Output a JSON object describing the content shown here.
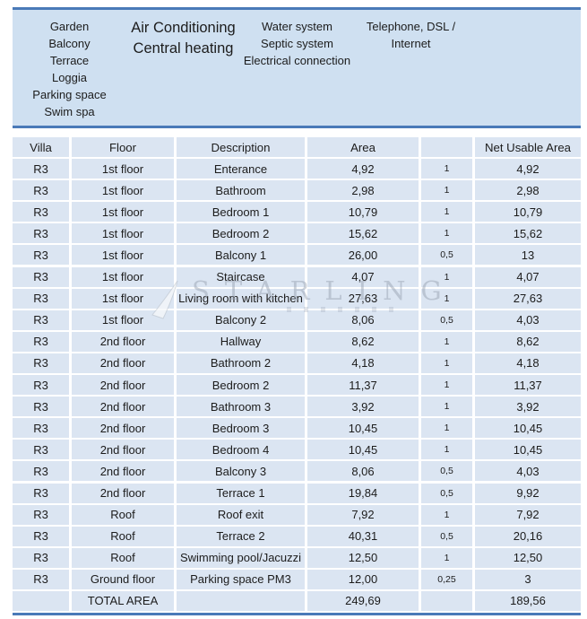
{
  "amenities": {
    "col1": [
      "Garden",
      "Balcony",
      "Terrace",
      "Loggia",
      "Parking space",
      "Swim spa"
    ],
    "col2": [
      "Air Conditioning",
      "Central heating"
    ],
    "col3": [
      "Water system",
      "Septic system",
      "Electrical connection"
    ],
    "col4": [
      "Telephone, DSL /",
      "Internet"
    ]
  },
  "table": {
    "headers": [
      "Villa",
      "Floor",
      "Description",
      "Area",
      "",
      "Net Usable Area"
    ],
    "rows": [
      [
        "R3",
        "1st floor",
        "Enterance",
        "4,92",
        "1",
        "4,92"
      ],
      [
        "R3",
        "1st floor",
        "Bathroom",
        "2,98",
        "1",
        "2,98"
      ],
      [
        "R3",
        "1st floor",
        "Bedroom 1",
        "10,79",
        "1",
        "10,79"
      ],
      [
        "R3",
        "1st floor",
        "Bedroom 2",
        "15,62",
        "1",
        "15,62"
      ],
      [
        "R3",
        "1st floor",
        "Balcony 1",
        "26,00",
        "0,5",
        "13"
      ],
      [
        "R3",
        "1st floor",
        "Staircase",
        "4,07",
        "1",
        "4,07"
      ],
      [
        "R3",
        "1st floor",
        "Living room with kitchen",
        "27,63",
        "1",
        "27,63"
      ],
      [
        "R3",
        "1st floor",
        "Balcony 2",
        "8,06",
        "0,5",
        "4,03"
      ],
      [
        "R3",
        "2nd floor",
        "Hallway",
        "8,62",
        "1",
        "8,62"
      ],
      [
        "R3",
        "2nd floor",
        "Bathroom 2",
        "4,18",
        "1",
        "4,18"
      ],
      [
        "R3",
        "2nd floor",
        "Bedroom 2",
        "11,37",
        "1",
        "11,37"
      ],
      [
        "R3",
        "2nd floor",
        "Bathroom 3",
        "3,92",
        "1",
        "3,92"
      ],
      [
        "R3",
        "2nd floor",
        "Bedroom 3",
        "10,45",
        "1",
        "10,45"
      ],
      [
        "R3",
        "2nd floor",
        "Bedroom 4",
        "10,45",
        "1",
        "10,45"
      ],
      [
        "R3",
        "2nd floor",
        "Balcony 3",
        "8,06",
        "0,5",
        "4,03"
      ],
      [
        "R3",
        "2nd floor",
        "Terrace 1",
        "19,84",
        "0,5",
        "9,92"
      ],
      [
        "R3",
        "Roof",
        "Roof exit",
        "7,92",
        "1",
        "7,92"
      ],
      [
        "R3",
        "Roof",
        "Terrace 2",
        "40,31",
        "0,5",
        "20,16"
      ],
      [
        "R3",
        "Roof",
        "Swimming pool/Jacuzzi",
        "12,50",
        "1",
        "12,50"
      ],
      [
        "R3",
        "Ground floor",
        "Parking space PM3",
        "12,00",
        "0,25",
        "3"
      ],
      [
        "",
        "TOTAL AREA",
        "",
        "249,69",
        "",
        "189,56"
      ]
    ]
  },
  "watermark": {
    "text": "STARLING"
  },
  "colors": {
    "accent_border": "#4a7ab8",
    "box_fill": "#cfe0f1",
    "cell_fill": "#dbe5f2",
    "text": "#1c1c1c",
    "watermark": "#96a0af"
  }
}
